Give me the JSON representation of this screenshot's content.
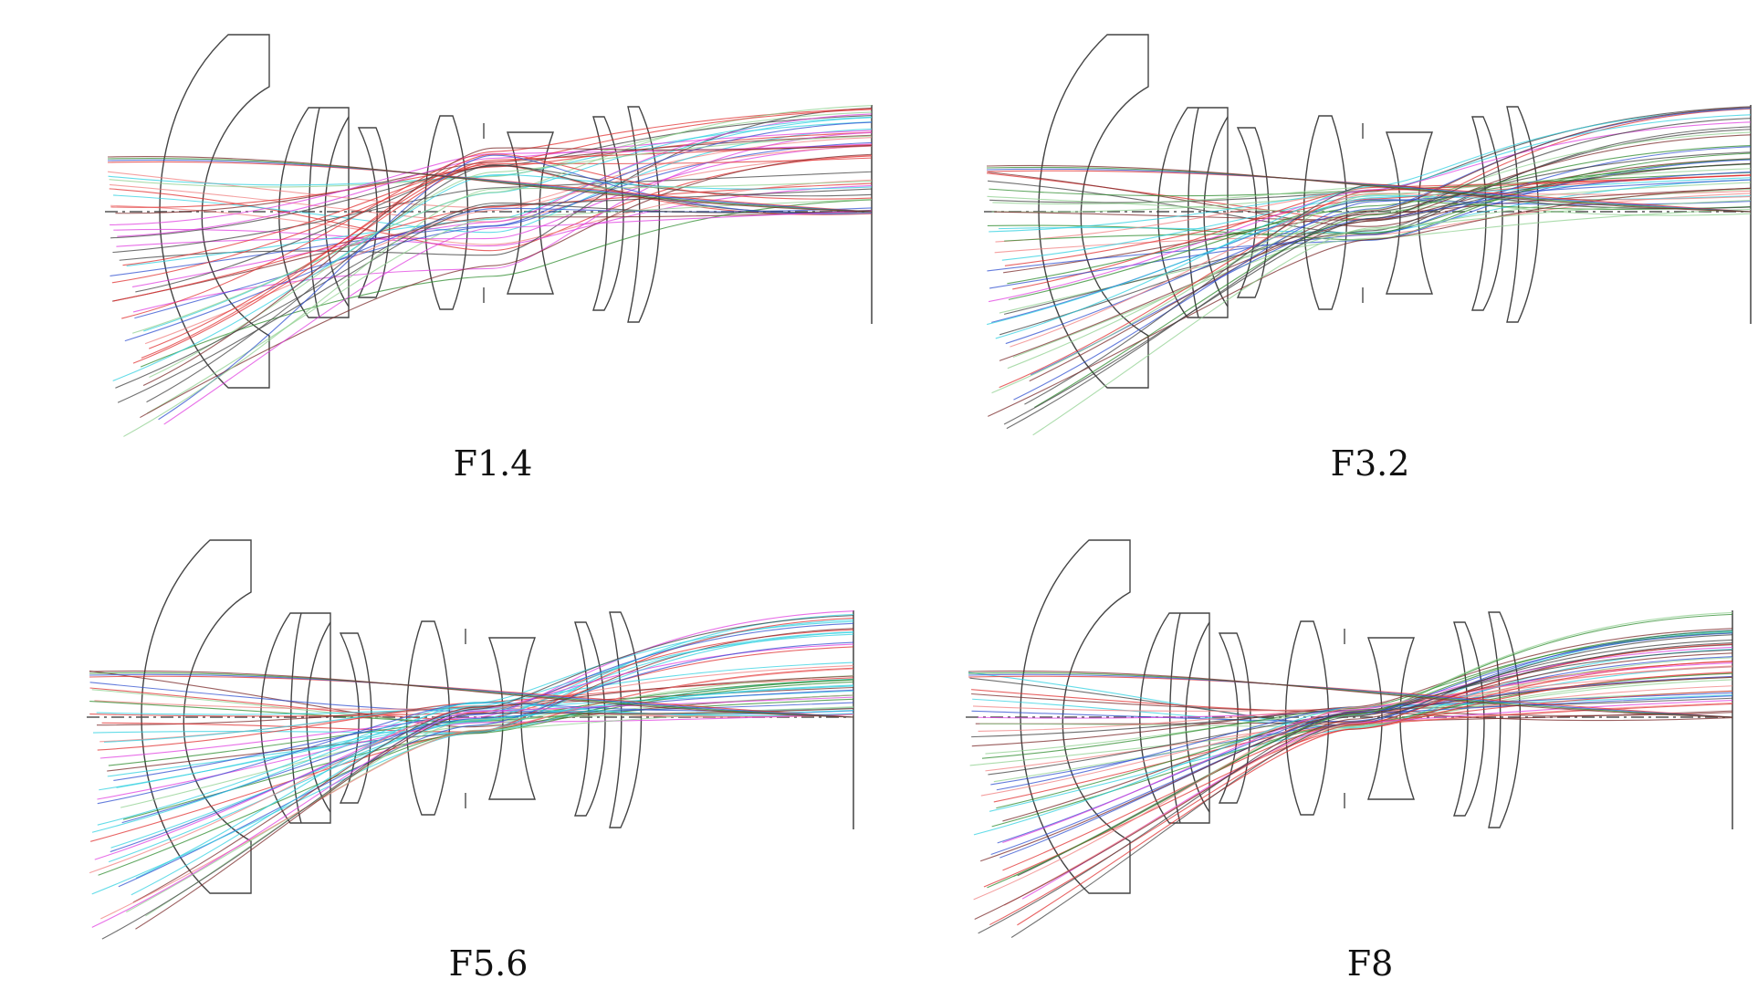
{
  "panels": [
    {
      "id": "f1-4",
      "caption": "F1.4",
      "aperture": 1.4
    },
    {
      "id": "f3-2",
      "caption": "F3.2",
      "aperture": 3.2
    },
    {
      "id": "f5-6",
      "caption": "F5.6",
      "aperture": 5.6
    },
    {
      "id": "f8",
      "caption": "F8",
      "aperture": 8
    }
  ],
  "ray_colors": [
    "#e03030",
    "#3050d0",
    "#2e8b2e",
    "#7a2a2a",
    "#e040e0",
    "#30d0e0",
    "#f08080",
    "#90d090",
    "#404040"
  ]
}
